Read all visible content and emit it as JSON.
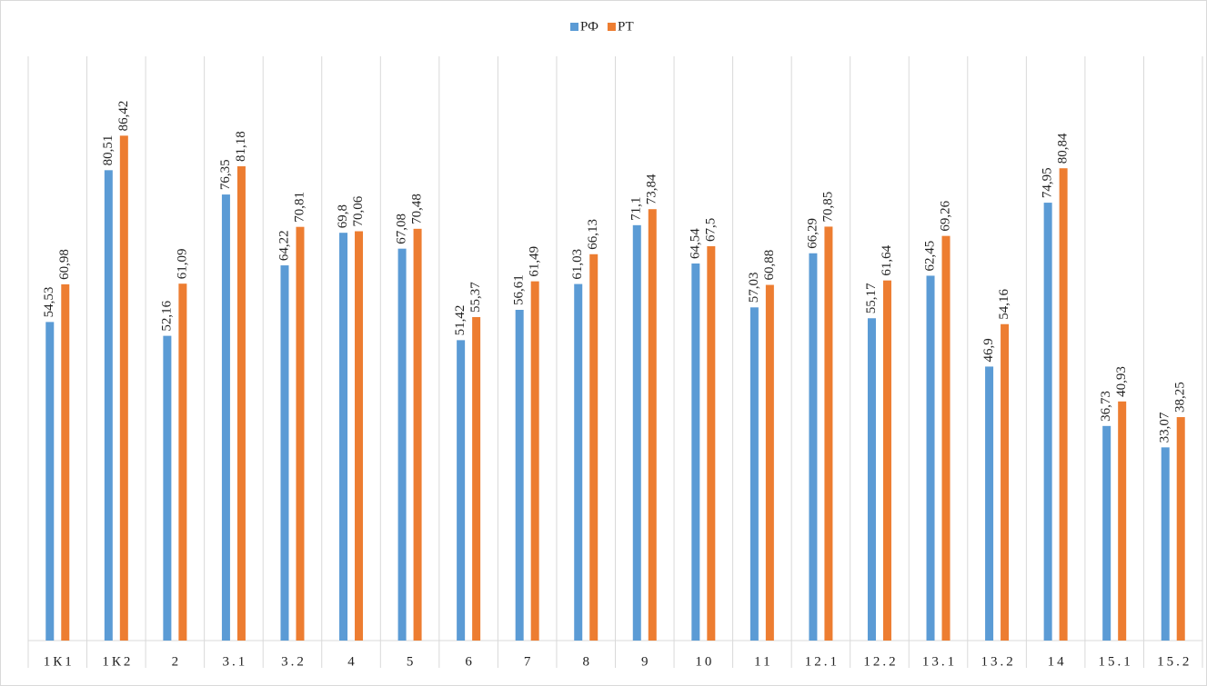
{
  "chart_data": {
    "type": "bar",
    "categories": [
      "1К1",
      "1К2",
      "2",
      "3.1",
      "3.2",
      "4",
      "5",
      "6",
      "7",
      "8",
      "9",
      "10",
      "11",
      "12.1",
      "12.2",
      "13.1",
      "13.2",
      "14",
      "15.1",
      "15.2"
    ],
    "series": [
      {
        "name": "РФ",
        "color": "#5b9bd5",
        "values": [
          54.53,
          80.51,
          52.16,
          76.35,
          64.22,
          69.8,
          67.08,
          51.42,
          56.61,
          61.03,
          71.1,
          64.54,
          57.03,
          66.29,
          55.17,
          62.45,
          46.9,
          74.95,
          36.73,
          33.07
        ],
        "value_labels": [
          "54,53",
          "80,51",
          "52,16",
          "76,35",
          "64,22",
          "69,8",
          "67,08",
          "51,42",
          "56,61",
          "61,03",
          "71,1",
          "64,54",
          "57,03",
          "66,29",
          "55,17",
          "62,45",
          "46,9",
          "74,95",
          "36,73",
          "33,07"
        ]
      },
      {
        "name": "РТ",
        "color": "#ed7d31",
        "values": [
          60.98,
          86.42,
          61.09,
          81.18,
          70.81,
          70.06,
          70.48,
          55.37,
          61.49,
          66.13,
          73.84,
          67.5,
          60.88,
          70.85,
          61.64,
          69.26,
          54.16,
          80.84,
          40.93,
          38.25
        ],
        "value_labels": [
          "60,98",
          "86,42",
          "61,09",
          "81,18",
          "70,81",
          "70,06",
          "70,48",
          "55,37",
          "61,49",
          "66,13",
          "73,84",
          "67,5",
          "60,88",
          "70,85",
          "61,64",
          "69,26",
          "54,16",
          "80,84",
          "40,93",
          "38,25"
        ]
      }
    ],
    "ylim": [
      0,
      100
    ],
    "legend": "top"
  }
}
